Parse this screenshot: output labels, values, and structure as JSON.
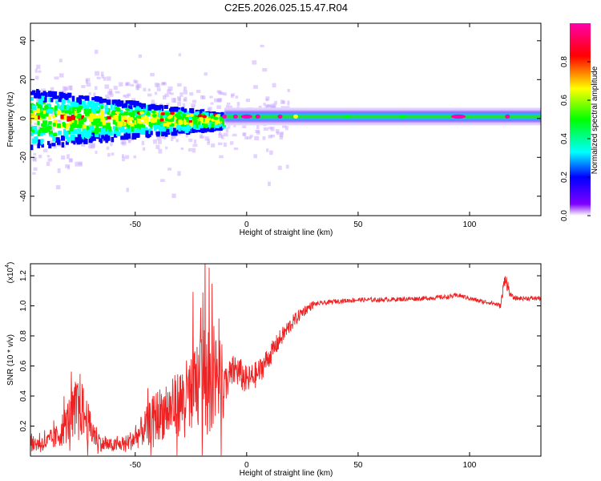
{
  "title": "C2E5.2026.025.15.47.R04",
  "chart_data": [
    {
      "type": "heatmap",
      "title": "C2E5.2026.025.15.47.R04",
      "xlabel": "Height of straight line (km)",
      "ylabel": "Frequency (Hz)",
      "xlim": [
        -97,
        132
      ],
      "ylim": [
        -50,
        49
      ],
      "xticks": [
        -50,
        0,
        50,
        100
      ],
      "xtick_labels": [
        "-50",
        "0",
        "50",
        "100"
      ],
      "yticks": [
        -40,
        -20,
        0,
        20,
        40
      ],
      "ytick_labels": [
        "-40",
        "-20",
        "0",
        "20",
        "40"
      ],
      "colorbar": {
        "label": "Normalized spectral amplitude",
        "range": [
          0,
          1
        ],
        "ticks": [
          0.0,
          0.2,
          0.4,
          0.6,
          0.8
        ],
        "tick_labels": [
          "0.0",
          "0.2",
          "0.4",
          "0.6",
          "0.8"
        ],
        "colors": [
          "#ffffff",
          "#7f00ff",
          "#0000ff",
          "#00ffff",
          "#00ff00",
          "#ffff00",
          "#ff0000",
          "#ff00aa"
        ]
      },
      "description_series": [
        {
          "name": "noisy region",
          "x_range": [
            -97,
            -10
          ],
          "freq_spread_hz": 15
        },
        {
          "name": "carrier line",
          "x_range": [
            -10,
            132
          ],
          "freq_center_hz": 1
        }
      ]
    },
    {
      "type": "line",
      "xlabel": "Height of straight line (km)",
      "ylabel": "SNR (10 * v/v)",
      "y_multiplier": "(x10",
      "y_multiplier_exp": "4",
      "xlim": [
        -97,
        132
      ],
      "ylim": [
        0.0,
        1.28
      ],
      "xticks": [
        -50,
        0,
        50,
        100
      ],
      "xtick_labels": [
        "-50",
        "0",
        "50",
        "100"
      ],
      "yticks": [
        0.2,
        0.4,
        0.6,
        0.8,
        1.0,
        1.2
      ],
      "ytick_labels": [
        "0.2",
        "0.4",
        "0.6",
        "0.8",
        "1.0",
        "1.2"
      ],
      "color": "#ee2222",
      "series": [
        {
          "name": "SNR",
          "x": [
            -97,
            -90,
            -85,
            -80,
            -75,
            -72,
            -70,
            -68,
            -65,
            -60,
            -55,
            -50,
            -45,
            -40,
            -35,
            -30,
            -25,
            -20,
            -15,
            -12,
            -10,
            -5,
            0,
            5,
            10,
            15,
            20,
            25,
            30,
            40,
            50,
            60,
            70,
            80,
            90,
            95,
            100,
            105,
            110,
            114,
            116,
            118,
            120,
            125,
            132
          ],
          "y": [
            0.08,
            0.09,
            0.13,
            0.24,
            0.35,
            0.25,
            0.18,
            0.14,
            0.08,
            0.07,
            0.08,
            0.12,
            0.2,
            0.28,
            0.3,
            0.36,
            0.42,
            0.52,
            0.55,
            0.45,
            0.48,
            0.58,
            0.5,
            0.55,
            0.66,
            0.78,
            0.88,
            0.96,
            1.01,
            1.03,
            1.04,
            1.04,
            1.045,
            1.05,
            1.06,
            1.07,
            1.05,
            1.03,
            1.02,
            1.0,
            1.2,
            1.08,
            1.05,
            1.05,
            1.05
          ]
        }
      ]
    }
  ]
}
